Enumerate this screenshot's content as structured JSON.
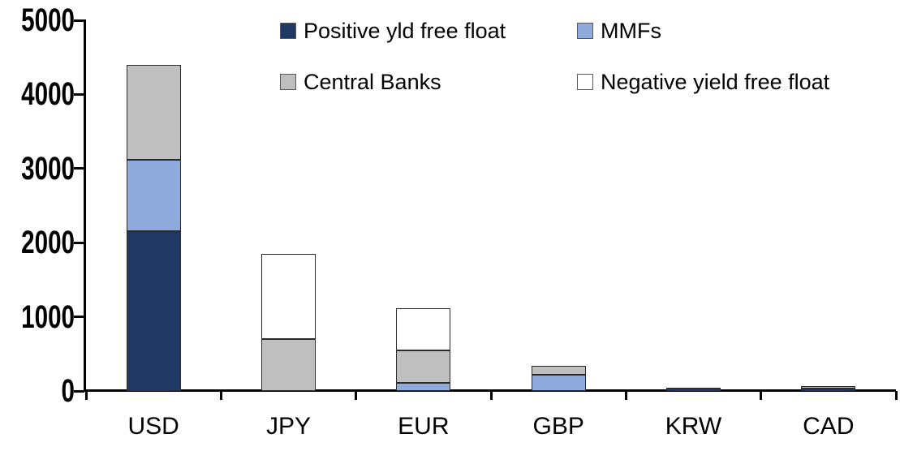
{
  "chart_data": {
    "type": "bar",
    "stacked": true,
    "title": "",
    "xlabel": "",
    "ylabel": "",
    "categories": [
      "USD",
      "JPY",
      "EUR",
      "GBP",
      "KRW",
      "CAD"
    ],
    "series": [
      {
        "name": "Positive yld free float",
        "color": "#1F3864",
        "values": [
          2160,
          0,
          0,
          0,
          45,
          30
        ]
      },
      {
        "name": "MMFs",
        "color": "#8FAADC",
        "values": [
          960,
          0,
          110,
          220,
          0,
          0
        ]
      },
      {
        "name": "Central Banks",
        "color": "#BFBFBF",
        "values": [
          1280,
          700,
          435,
          115,
          0,
          40
        ]
      },
      {
        "name": "Negative yield free float",
        "color": "#FFFFFF",
        "values": [
          0,
          1150,
          575,
          0,
          0,
          0
        ]
      }
    ],
    "stack_totals": [
      4400,
      1850,
      1120,
      335,
      45,
      70
    ],
    "y_axis": {
      "min": 0,
      "max": 5000,
      "step": 1000,
      "tick_labels": [
        "0",
        "1000",
        "2000",
        "3000",
        "4000",
        "5000"
      ]
    },
    "legend": {
      "position": "top",
      "rows": [
        [
          "Positive yld free float",
          "MMFs"
        ],
        [
          "Central Banks",
          "Negative yield free float"
        ]
      ]
    },
    "grid": false
  },
  "colors": {
    "background": "#FFFFFF",
    "axis": "#000000",
    "text": "#000000",
    "bar_border": "#2B2B2B",
    "swatch_border": "#595959"
  }
}
